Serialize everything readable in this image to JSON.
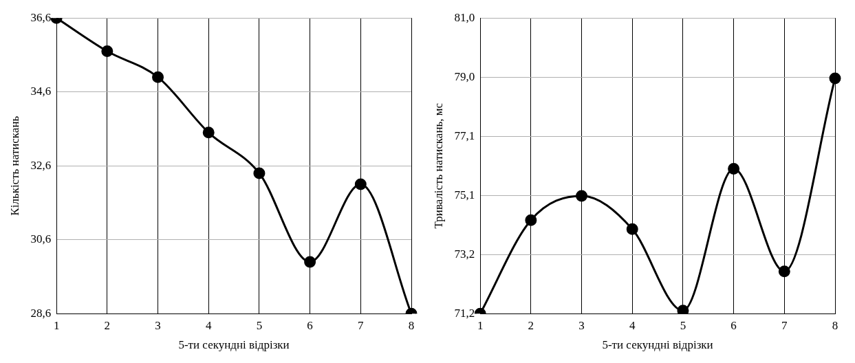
{
  "chart_data": [
    {
      "type": "line",
      "categories": [
        "1",
        "2",
        "3",
        "4",
        "5",
        "6",
        "7",
        "8"
      ],
      "values": [
        36.6,
        35.7,
        35.0,
        33.5,
        32.4,
        30.0,
        32.1,
        28.6
      ],
      "color": "#000000",
      "ylim": [
        28.6,
        36.6
      ],
      "yticks": [
        {
          "value": 28.6,
          "label": "28,6"
        },
        {
          "value": 30.6,
          "label": "30,6"
        },
        {
          "value": 32.6,
          "label": "32,6"
        },
        {
          "value": 34.6,
          "label": "34,6"
        },
        {
          "value": 36.6,
          "label": "36,6"
        }
      ],
      "xlabel": "5-ти секундні відрізки",
      "ylabel": "Кількість натискань",
      "grid": true,
      "marker": "circle",
      "line_style": "solid"
    },
    {
      "type": "line",
      "categories": [
        "1",
        "2",
        "3",
        "4",
        "5",
        "6",
        "7",
        "8"
      ],
      "values": [
        71.2,
        74.3,
        75.1,
        74.0,
        71.3,
        76.0,
        72.6,
        79.0
      ],
      "color": "#000000",
      "ylim": [
        71.2,
        81.0
      ],
      "yticks": [
        {
          "value": 71.2,
          "label": "71,2"
        },
        {
          "value": 73.16,
          "label": "73,2"
        },
        {
          "value": 75.12,
          "label": "75,1"
        },
        {
          "value": 77.08,
          "label": "77,1"
        },
        {
          "value": 79.04,
          "label": "79,0"
        },
        {
          "value": 81.0,
          "label": "81,0"
        }
      ],
      "xlabel": "5-ти секундні відрізки",
      "ylabel": "Тривалість натискань, мс",
      "grid": true,
      "marker": "circle",
      "line_style": "solid"
    }
  ]
}
